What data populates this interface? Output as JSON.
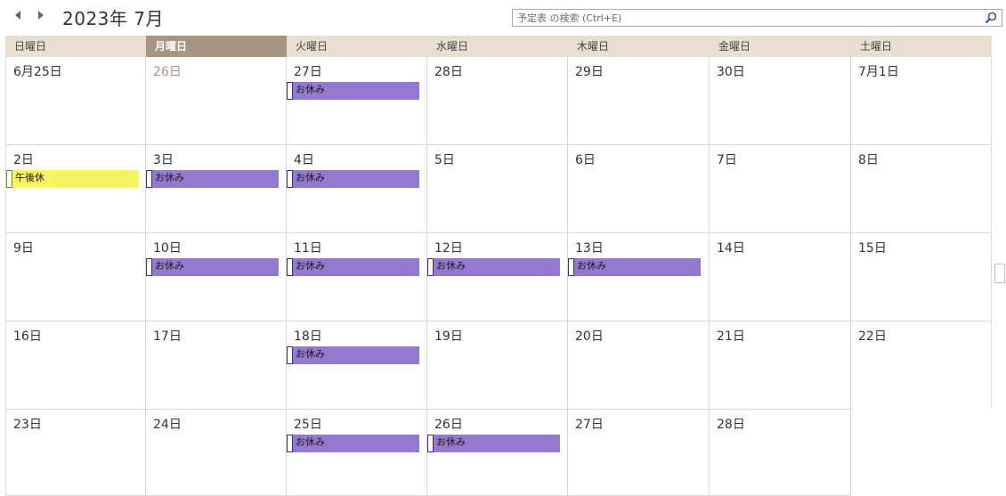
{
  "header": {
    "title": "2023年 7月",
    "prev_icon": "triangle-left-icon",
    "next_icon": "triangle-right-icon"
  },
  "search": {
    "placeholder": "予定表 の検索 (Ctrl+E)",
    "value": "",
    "icon": "search-icon"
  },
  "weekdays": [
    "日曜日",
    "月曜日",
    "火曜日",
    "水曜日",
    "木曜日",
    "金曜日",
    "土曜日"
  ],
  "today_column": 1,
  "colors": {
    "header_bg": "#e8dfd3",
    "today_header_bg": "#a69582",
    "event_purple": "#9379d0",
    "event_yellow": "#f7f363"
  },
  "weeks": [
    [
      {
        "label": "6月25日",
        "events": []
      },
      {
        "label": "26日",
        "dim": true,
        "events": []
      },
      {
        "label": "27日",
        "events": [
          {
            "text": "お休み",
            "color": "purple"
          }
        ]
      },
      {
        "label": "28日",
        "events": []
      },
      {
        "label": "29日",
        "events": []
      },
      {
        "label": "30日",
        "events": []
      },
      {
        "label": "7月1日",
        "events": []
      }
    ],
    [
      {
        "label": "2日",
        "events": [
          {
            "text": "午後休",
            "color": "yellow"
          }
        ]
      },
      {
        "label": "3日",
        "events": [
          {
            "text": "お休み",
            "color": "purple"
          }
        ]
      },
      {
        "label": "4日",
        "events": [
          {
            "text": "お休み",
            "color": "purple"
          }
        ]
      },
      {
        "label": "5日",
        "events": []
      },
      {
        "label": "6日",
        "events": []
      },
      {
        "label": "7日",
        "events": []
      },
      {
        "label": "8日",
        "events": []
      }
    ],
    [
      {
        "label": "9日",
        "events": []
      },
      {
        "label": "10日",
        "events": [
          {
            "text": "お休み",
            "color": "purple"
          }
        ]
      },
      {
        "label": "11日",
        "events": [
          {
            "text": "お休み",
            "color": "purple"
          }
        ]
      },
      {
        "label": "12日",
        "events": [
          {
            "text": "お休み",
            "color": "purple"
          }
        ]
      },
      {
        "label": "13日",
        "events": [
          {
            "text": "お休み",
            "color": "purple"
          }
        ]
      },
      {
        "label": "14日",
        "events": []
      },
      {
        "label": "15日",
        "events": []
      }
    ],
    [
      {
        "label": "16日",
        "events": []
      },
      {
        "label": "17日",
        "events": []
      },
      {
        "label": "18日",
        "events": [
          {
            "text": "お休み",
            "color": "purple"
          }
        ]
      },
      {
        "label": "19日",
        "events": []
      },
      {
        "label": "20日",
        "events": []
      },
      {
        "label": "21日",
        "events": []
      },
      {
        "label": "22日",
        "events": []
      }
    ],
    [
      {
        "label": "23日",
        "events": []
      },
      {
        "label": "24日",
        "events": []
      },
      {
        "label": "25日",
        "events": [
          {
            "text": "お休み",
            "color": "purple"
          }
        ]
      },
      {
        "label": "26日",
        "events": [
          {
            "text": "お休み",
            "color": "purple"
          }
        ]
      },
      {
        "label": "27日",
        "events": []
      },
      {
        "label": "28日",
        "events": []
      },
      {
        "label": "",
        "events": []
      }
    ]
  ]
}
